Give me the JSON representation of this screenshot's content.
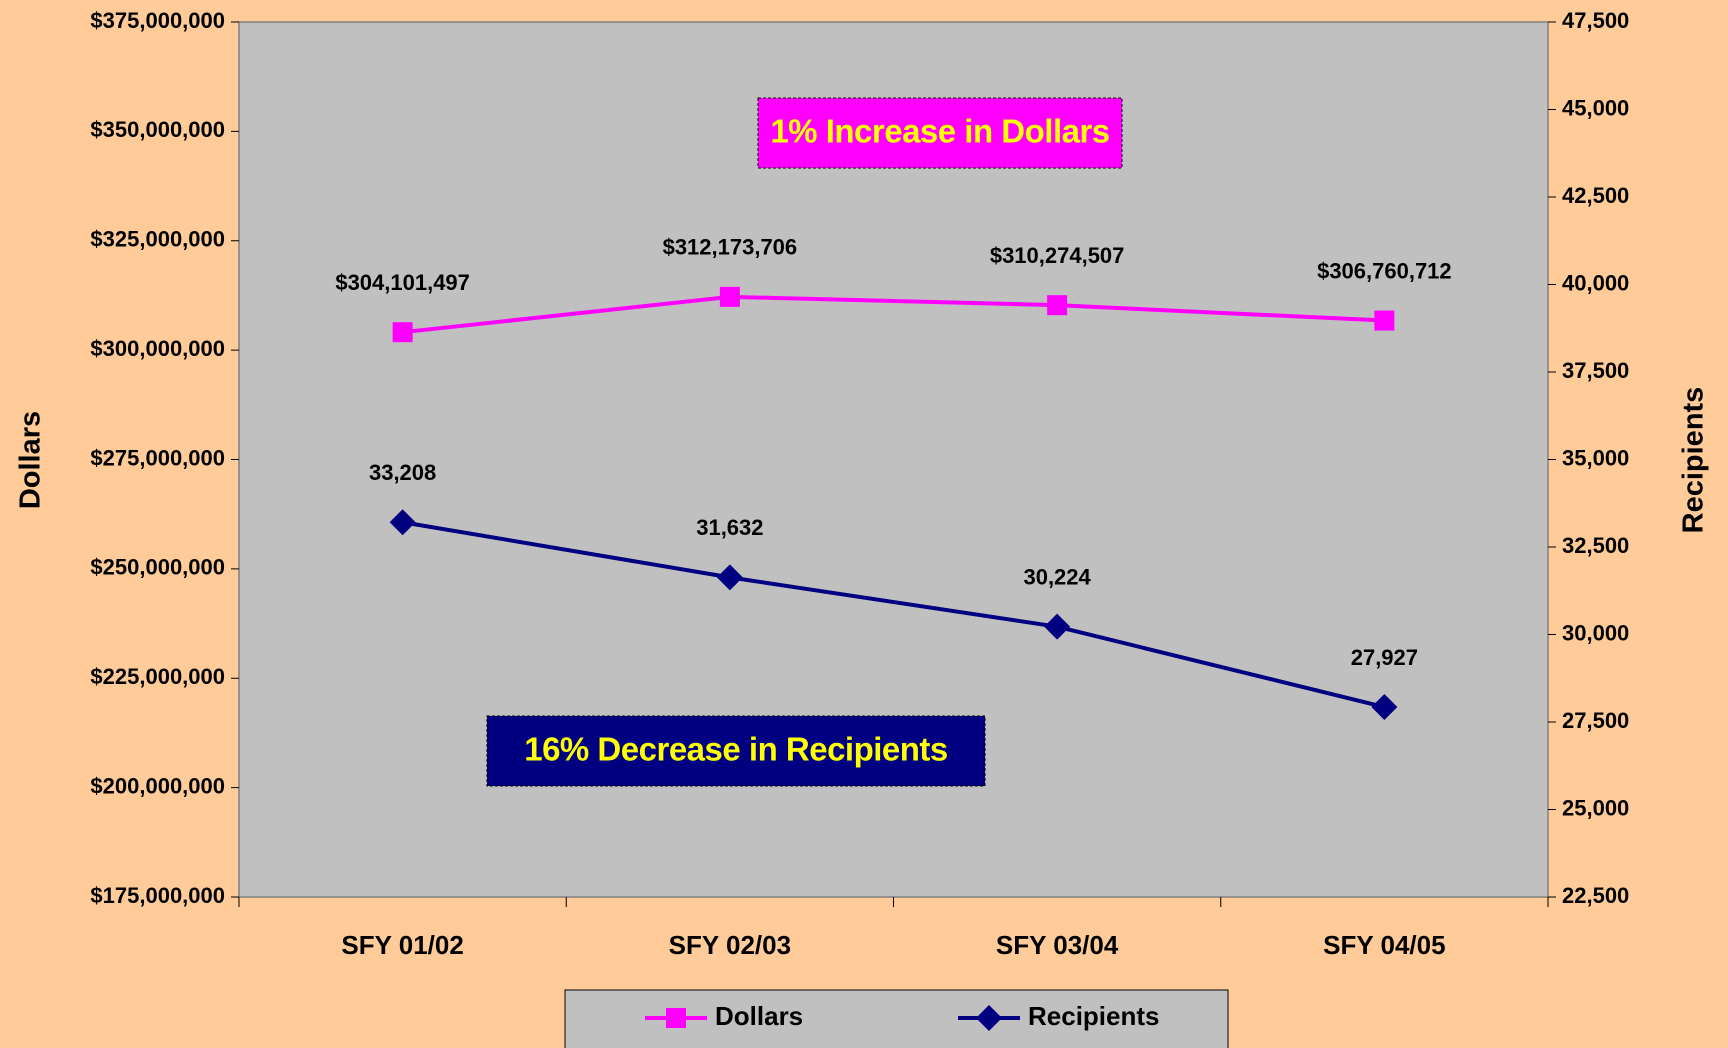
{
  "chart_data": {
    "type": "line",
    "categories": [
      "SFY 01/02",
      "SFY 02/03",
      "SFY 03/04",
      "SFY 04/05"
    ],
    "ylabel": "Dollars",
    "y2label": "Recipients",
    "ylim": [
      175000000,
      375000000
    ],
    "yticks": [
      {
        "value": 175000000,
        "label": "$175,000,000"
      },
      {
        "value": 200000000,
        "label": "$200,000,000"
      },
      {
        "value": 225000000,
        "label": "$225,000,000"
      },
      {
        "value": 250000000,
        "label": "$250,000,000"
      },
      {
        "value": 275000000,
        "label": "$275,000,000"
      },
      {
        "value": 300000000,
        "label": "$300,000,000"
      },
      {
        "value": 325000000,
        "label": "$325,000,000"
      },
      {
        "value": 350000000,
        "label": "$350,000,000"
      },
      {
        "value": 375000000,
        "label": "$375,000,000"
      }
    ],
    "y2lim": [
      22500,
      47500
    ],
    "y2ticks": [
      {
        "value": 22500,
        "label": "22,500"
      },
      {
        "value": 25000,
        "label": "25,000"
      },
      {
        "value": 27500,
        "label": "27,500"
      },
      {
        "value": 30000,
        "label": "30,000"
      },
      {
        "value": 32500,
        "label": "32,500"
      },
      {
        "value": 35000,
        "label": "35,000"
      },
      {
        "value": 37500,
        "label": "37,500"
      },
      {
        "value": 40000,
        "label": "40,000"
      },
      {
        "value": 42500,
        "label": "42,500"
      },
      {
        "value": 45000,
        "label": "45,000"
      },
      {
        "value": 47500,
        "label": "47,500"
      }
    ],
    "series": [
      {
        "name": "Dollars",
        "color": "#ff00ff",
        "marker": "square",
        "axis": "y",
        "values": [
          304101497,
          312173706,
          310274507,
          306760712
        ],
        "value_labels": [
          "$304,101,497",
          "$312,173,706",
          "$310,274,507",
          "$306,760,712"
        ]
      },
      {
        "name": "Recipients",
        "color": "#000080",
        "marker": "diamond",
        "axis": "y2",
        "values": [
          33208,
          31632,
          30224,
          27927
        ],
        "value_labels": [
          "33,208",
          "31,632",
          "30,224",
          "27,927"
        ]
      }
    ],
    "annotations": [
      "1% Increase in Dollars",
      "16% Decrease in Recipients"
    ],
    "legend": "bottom"
  }
}
